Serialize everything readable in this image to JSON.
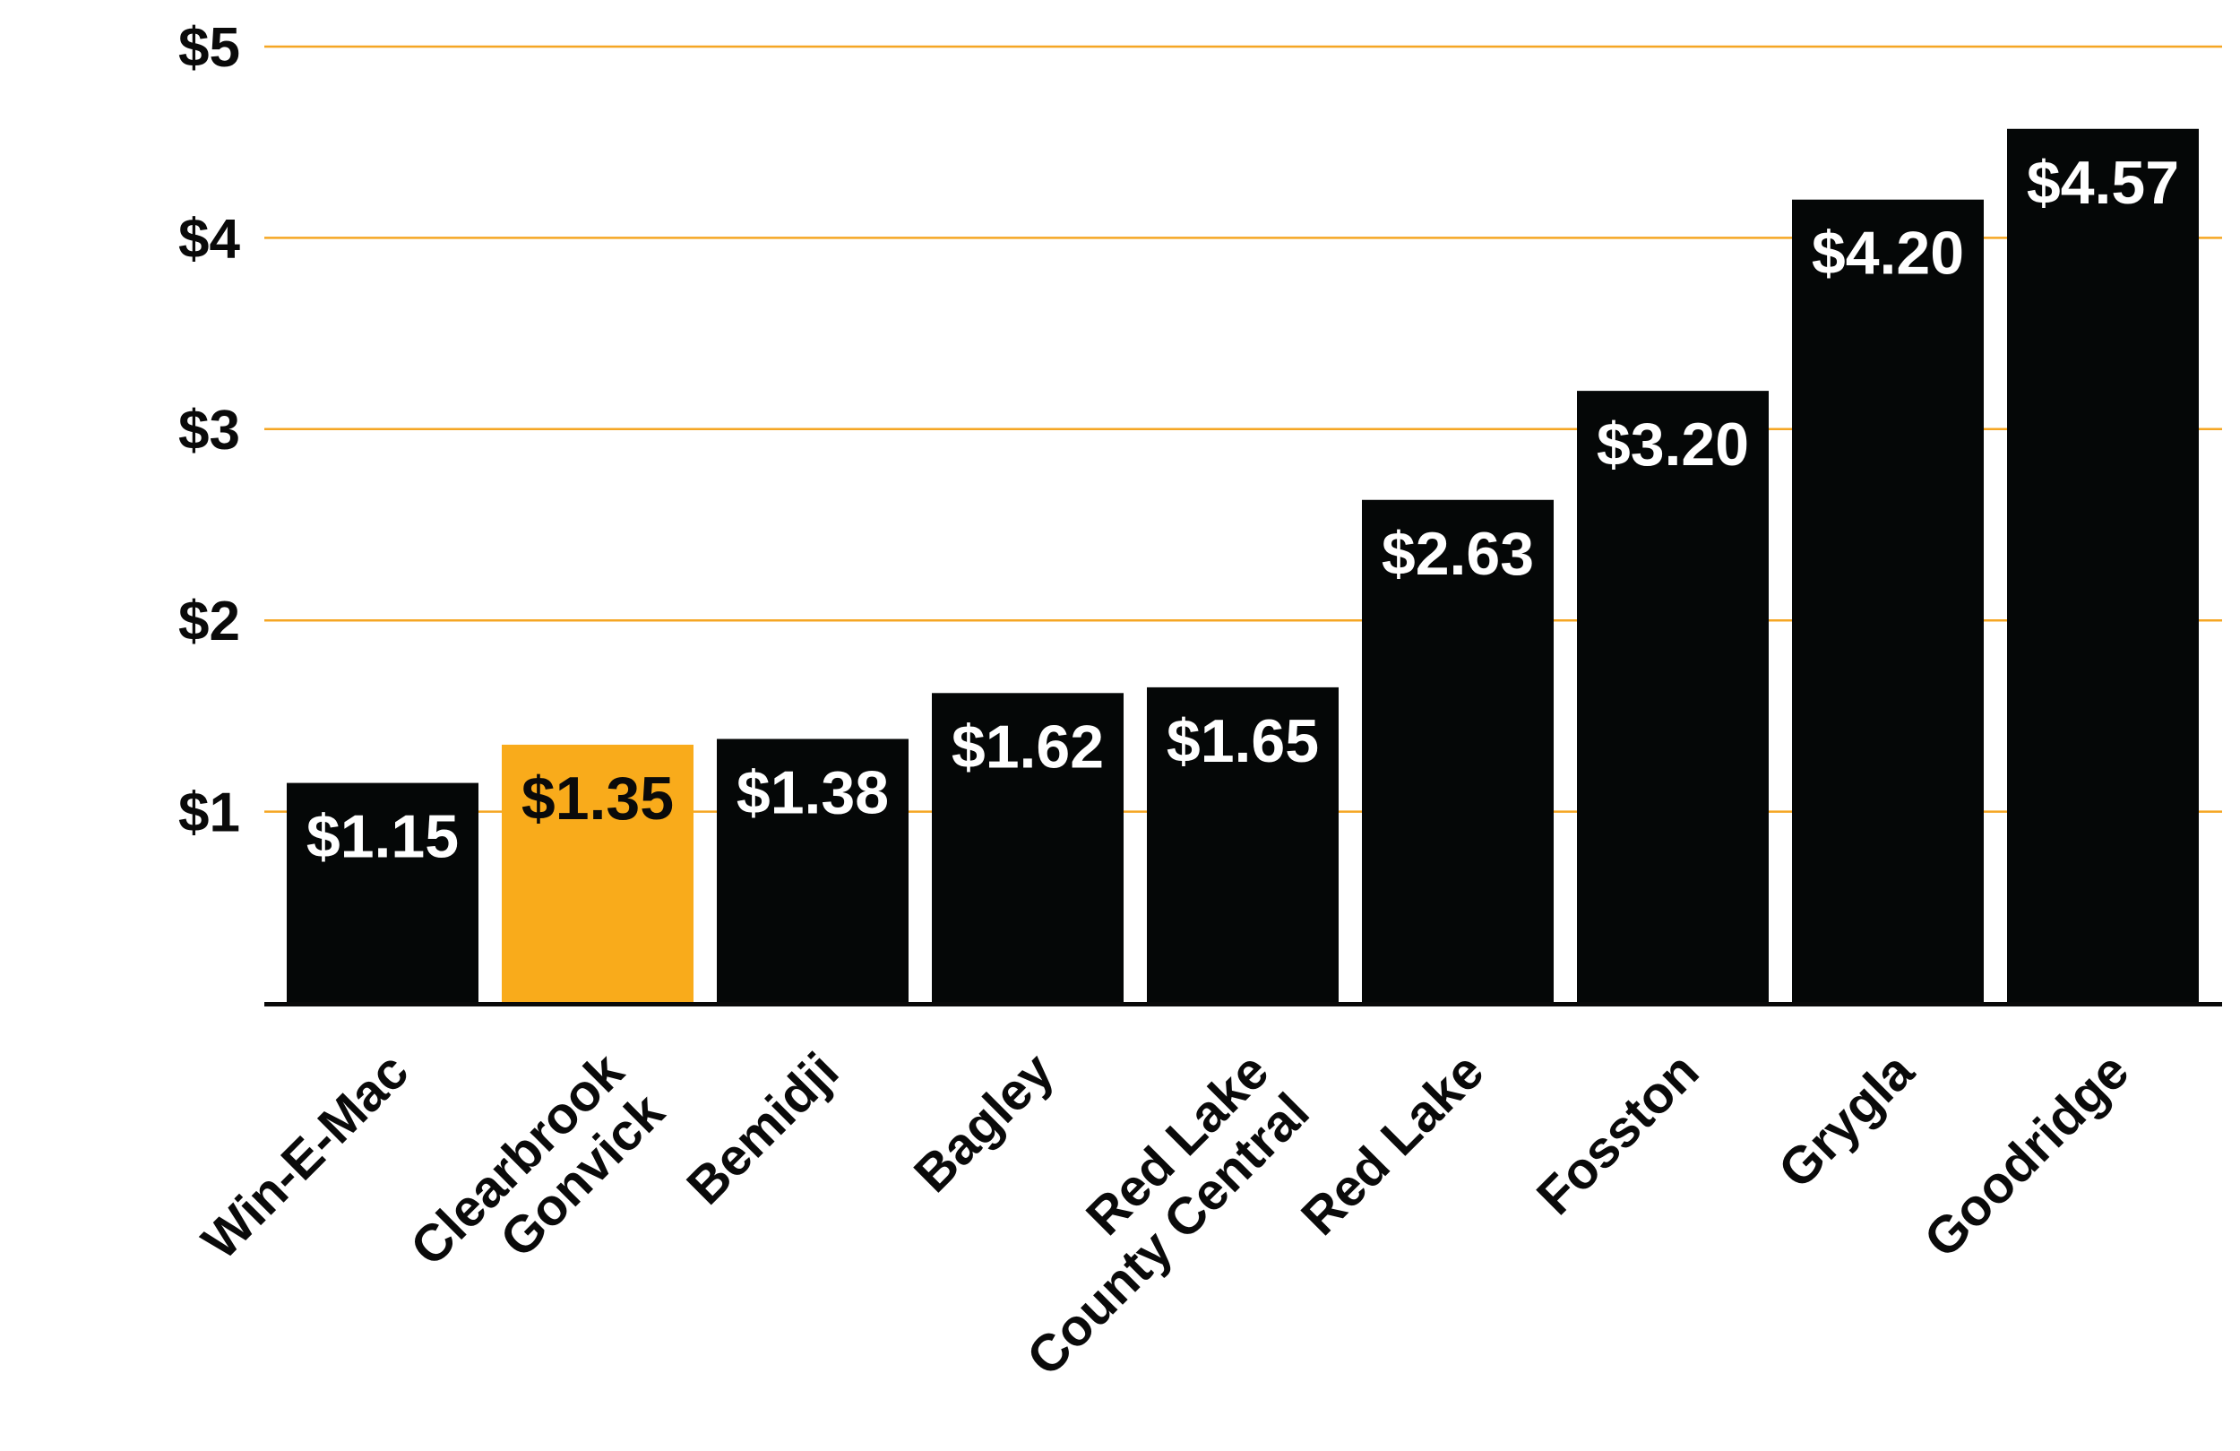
{
  "chart_data": {
    "type": "bar",
    "title": "",
    "xlabel": "",
    "ylabel": "",
    "ylim": [
      0,
      5
    ],
    "y_ticks": [
      {
        "value": 1,
        "label": "$1"
      },
      {
        "value": 2,
        "label": "$2"
      },
      {
        "value": 3,
        "label": "$3"
      },
      {
        "value": 4,
        "label": "$4"
      },
      {
        "value": 5,
        "label": "$5"
      }
    ],
    "grid": true,
    "categories": [
      [
        "Win-E-Mac"
      ],
      [
        "Clearbrook",
        "Gonvick"
      ],
      [
        "Bemidji"
      ],
      [
        "Bagley"
      ],
      [
        "Red Lake",
        "County Central"
      ],
      [
        "Red Lake"
      ],
      [
        "Fosston"
      ],
      [
        "Grygla"
      ],
      [
        "Goodridge"
      ]
    ],
    "values": [
      1.15,
      1.35,
      1.38,
      1.62,
      1.65,
      2.63,
      3.2,
      4.2,
      4.57
    ],
    "data_labels": [
      "$1.15",
      "$1.35",
      "$1.38",
      "$1.62",
      "$1.65",
      "$2.63",
      "$3.20",
      "$4.20",
      "$4.57"
    ],
    "highlight_index": 1,
    "colors": {
      "bar": "#050707",
      "highlight": "#f9ab1b",
      "gridline": "#f5a623",
      "axis": "#0a0a0a",
      "label_on_dark": "#ffffff",
      "label_on_highlight": "#0a0a0a"
    }
  }
}
